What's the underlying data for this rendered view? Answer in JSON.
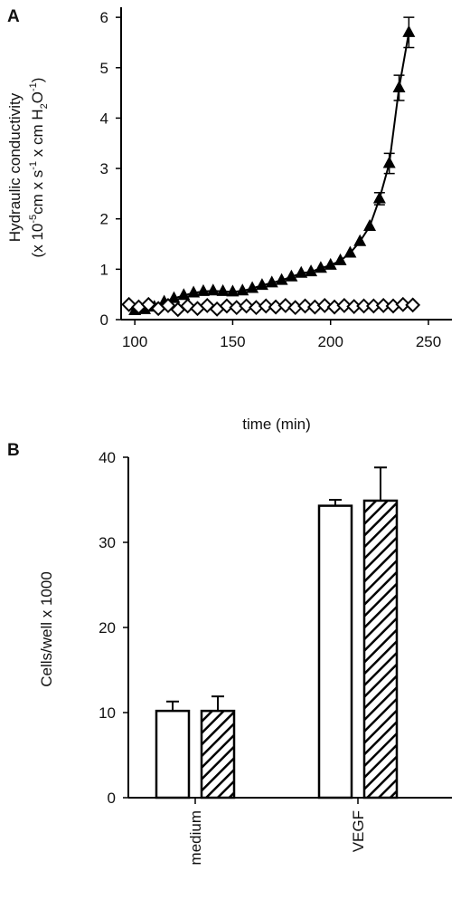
{
  "chart_data": [
    {
      "panel": "A",
      "type": "line",
      "xlabel": "time (min)",
      "ylabel": {
        "line1": "Hydraulic conductivity",
        "line2_parts": [
          "(x 10",
          "-5",
          "cm x s",
          "-1",
          " x cm H",
          "2",
          "O",
          "-1",
          ")"
        ]
      },
      "xlim": [
        93,
        262
      ],
      "ylim": [
        0,
        6.2
      ],
      "xticks": [
        "100",
        "150",
        "200",
        "250"
      ],
      "yticks": [
        "0",
        "1",
        "2",
        "3",
        "4",
        "5",
        "6"
      ],
      "grid": false,
      "series": [
        {
          "marker": "filled-triangle",
          "points": [
            [
              100,
              0.18
            ],
            [
              105,
              0.2
            ],
            [
              110,
              0.25
            ],
            [
              115,
              0.35
            ],
            [
              120,
              0.42
            ],
            [
              125,
              0.48
            ],
            [
              130,
              0.53
            ],
            [
              135,
              0.56
            ],
            [
              140,
              0.57
            ],
            [
              145,
              0.56
            ],
            [
              150,
              0.55
            ],
            [
              155,
              0.57
            ],
            [
              160,
              0.62
            ],
            [
              165,
              0.68
            ],
            [
              170,
              0.73
            ],
            [
              175,
              0.78
            ],
            [
              180,
              0.85
            ],
            [
              185,
              0.92
            ],
            [
              190,
              0.95
            ],
            [
              195,
              1.02
            ],
            [
              200,
              1.08
            ],
            [
              205,
              1.17
            ],
            [
              210,
              1.32
            ],
            [
              215,
              1.55
            ],
            [
              220,
              1.85
            ],
            [
              225,
              2.4
            ],
            [
              230,
              3.1
            ],
            [
              235,
              4.6
            ],
            [
              240,
              5.7
            ]
          ],
          "errors": [
            [
              225,
              0.12
            ],
            [
              230,
              0.2
            ],
            [
              235,
              0.25
            ],
            [
              240,
              0.3
            ]
          ]
        },
        {
          "marker": "open-diamond",
          "points": [
            [
              97,
              0.3
            ],
            [
              102,
              0.25
            ],
            [
              107,
              0.3
            ],
            [
              112,
              0.22
            ],
            [
              117,
              0.28
            ],
            [
              122,
              0.2
            ],
            [
              127,
              0.27
            ],
            [
              132,
              0.22
            ],
            [
              137,
              0.28
            ],
            [
              142,
              0.21
            ],
            [
              147,
              0.27
            ],
            [
              152,
              0.24
            ],
            [
              157,
              0.27
            ],
            [
              162,
              0.24
            ],
            [
              167,
              0.27
            ],
            [
              172,
              0.25
            ],
            [
              177,
              0.28
            ],
            [
              182,
              0.24
            ],
            [
              187,
              0.27
            ],
            [
              192,
              0.25
            ],
            [
              197,
              0.28
            ],
            [
              202,
              0.25
            ],
            [
              207,
              0.28
            ],
            [
              212,
              0.26
            ],
            [
              217,
              0.27
            ],
            [
              222,
              0.27
            ],
            [
              227,
              0.28
            ],
            [
              232,
              0.27
            ],
            [
              237,
              0.3
            ],
            [
              242,
              0.29
            ]
          ]
        }
      ]
    },
    {
      "panel": "B",
      "type": "bar",
      "ylabel": "Cells/well x 1000",
      "ylim": [
        0,
        40
      ],
      "yticks": [
        "0",
        "10",
        "20",
        "30",
        "40"
      ],
      "grid": false,
      "categories": [
        "medium",
        "VEGF"
      ],
      "series": [
        {
          "fill": "open",
          "values": [
            10.2,
            34.3
          ],
          "errors": [
            1.1,
            0.7
          ]
        },
        {
          "fill": "hatched",
          "values": [
            10.2,
            34.9
          ],
          "errors": [
            1.7,
            3.9
          ]
        }
      ]
    }
  ]
}
